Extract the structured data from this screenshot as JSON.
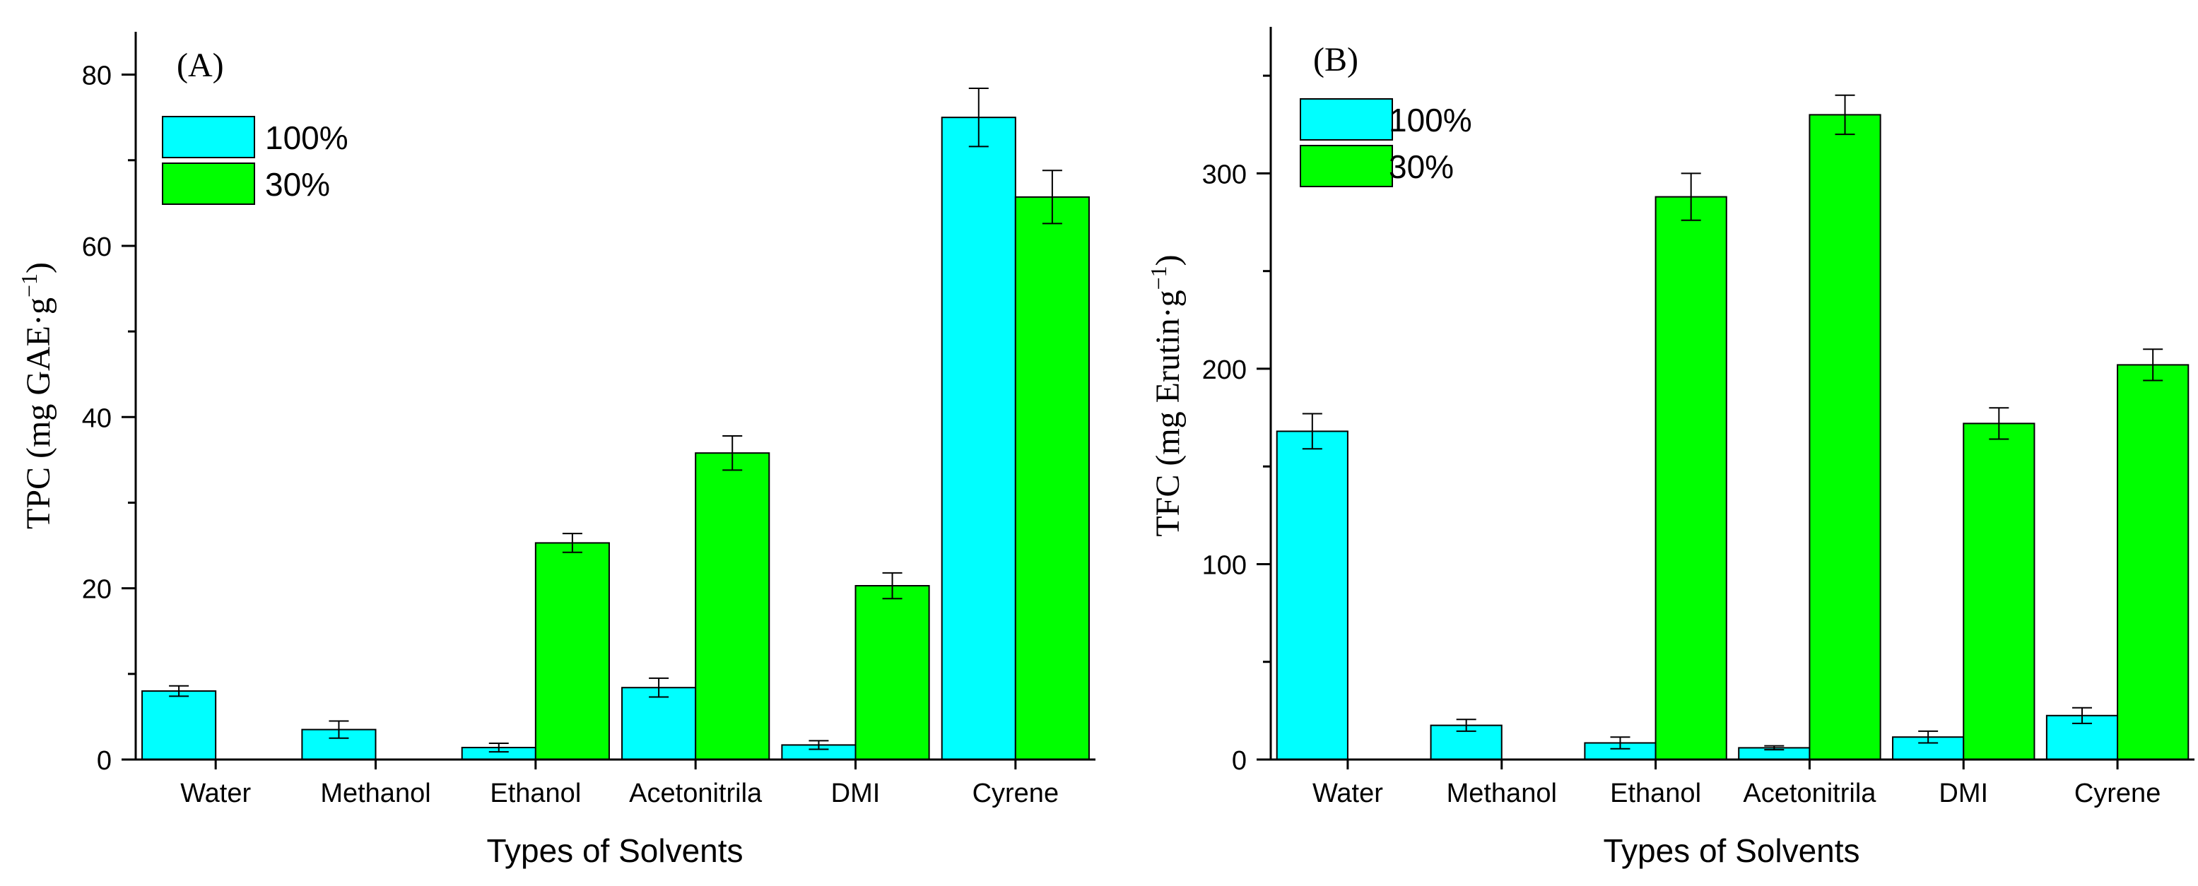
{
  "figure": {
    "colors": {
      "series_100": "#00ffff",
      "series_30": "#00ff00",
      "stroke": "#000000"
    }
  },
  "chart_data": [
    {
      "type": "bar",
      "panel_label": "(A)",
      "title": "",
      "xlabel": "Types of Solvents",
      "ylabel": "TPC (mg GAE·g",
      "ylabel_sup": "−1",
      "ylabel_close": ")",
      "categories": [
        "Water",
        "Methanol",
        "Ethanol",
        "Acetonitrila",
        "DMI",
        "Cyrene"
      ],
      "ylim": [
        0,
        85
      ],
      "yticks": [
        0,
        20,
        40,
        60,
        80
      ],
      "ytick_labels": [
        "0",
        "20",
        "40",
        "60",
        "80"
      ],
      "yminor_step": 10,
      "legend_position": "top-left",
      "series": [
        {
          "name": "100%",
          "color": "#00ffff",
          "values": [
            8.0,
            3.5,
            1.4,
            8.4,
            1.7,
            75.0
          ],
          "errors": [
            0.6,
            1.0,
            0.5,
            1.1,
            0.5,
            3.4
          ]
        },
        {
          "name": "30%",
          "color": "#00ff00",
          "values": [
            null,
            null,
            25.3,
            35.8,
            20.3,
            65.7
          ],
          "errors": [
            null,
            null,
            1.1,
            2.0,
            1.5,
            3.1
          ]
        }
      ]
    },
    {
      "type": "bar",
      "panel_label": "(B)",
      "title": "",
      "xlabel": "Types of Solvents",
      "ylabel": "TFC (mg Erutin·g",
      "ylabel_sup": "−1",
      "ylabel_close": ")",
      "categories": [
        "Water",
        "Methanol",
        "Ethanol",
        "Acetonitrila",
        "DMI",
        "Cyrene"
      ],
      "ylim": [
        0,
        375
      ],
      "yticks": [
        0,
        100,
        200,
        300
      ],
      "ytick_labels": [
        "0",
        "100",
        "200",
        "300"
      ],
      "yminor_step": 50,
      "legend_position": "top-left",
      "series": [
        {
          "name": "100%",
          "color": "#00ffff",
          "values": [
            168,
            17.5,
            8.5,
            6.0,
            11.5,
            22.5
          ],
          "errors": [
            9,
            3,
            3,
            1,
            3,
            4
          ]
        },
        {
          "name": "30%",
          "color": "#00ff00",
          "values": [
            null,
            null,
            288,
            330,
            172,
            202
          ],
          "errors": [
            null,
            null,
            12,
            10,
            8,
            8
          ]
        }
      ]
    }
  ]
}
